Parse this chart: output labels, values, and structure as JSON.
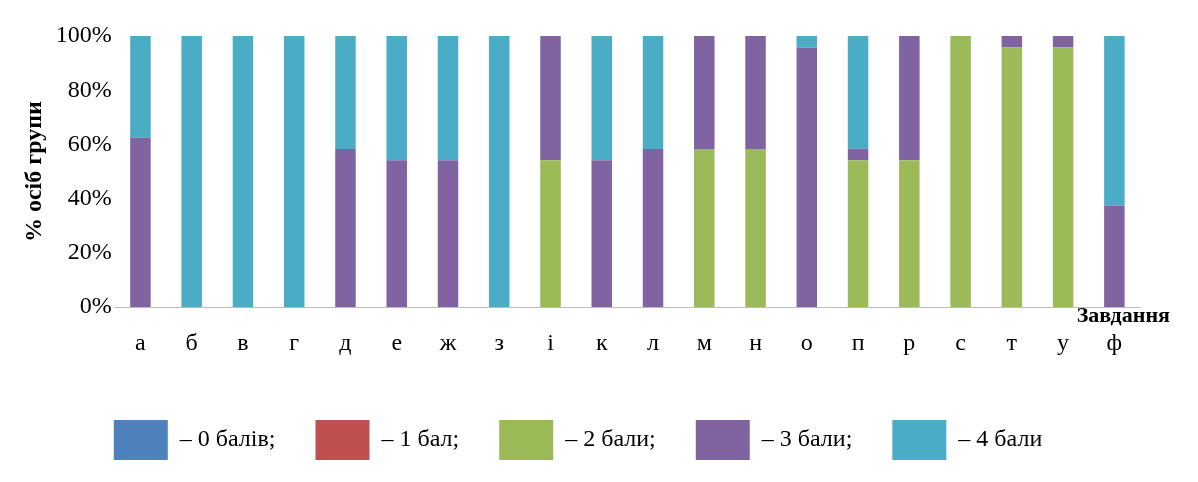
{
  "chart_data": {
    "type": "bar",
    "stacked": true,
    "xlabel": "Завдання",
    "ylabel": "% осіб групи",
    "categories": [
      "а",
      "б",
      "в",
      "г",
      "д",
      "е",
      "ж",
      "з",
      "і",
      "к",
      "л",
      "м",
      "н",
      "о",
      "п",
      "р",
      "с",
      "т",
      "у",
      "ф"
    ],
    "series": [
      {
        "name": "– 0 балів;",
        "color": "#4f81bd",
        "values": [
          0,
          0,
          0,
          0,
          0,
          0,
          0,
          0,
          0,
          0,
          0,
          0,
          0,
          0,
          0,
          0,
          0,
          0,
          0,
          0
        ]
      },
      {
        "name": "– 1 бал;",
        "color": "#c0504d",
        "values": [
          0,
          0,
          0,
          0,
          0,
          0,
          0,
          0,
          0,
          0,
          0,
          0,
          0,
          0,
          0,
          0,
          0,
          0,
          0,
          0
        ]
      },
      {
        "name": "– 2 бали;",
        "color": "#9bbb59",
        "values": [
          0,
          0,
          0,
          0,
          0,
          0,
          0,
          0,
          54.2,
          0,
          0,
          58.3,
          58.3,
          0,
          54.2,
          54.2,
          100,
          95.8,
          95.8,
          0
        ]
      },
      {
        "name": "– 3 бали;",
        "color": "#8064a2",
        "values": [
          62.5,
          0,
          0,
          0,
          58.3,
          54.2,
          54.2,
          0,
          45.8,
          54.2,
          58.3,
          41.7,
          41.7,
          95.8,
          4.2,
          45.8,
          0,
          4.2,
          4.2,
          37.5
        ]
      },
      {
        "name": "– 4 бали",
        "color": "#4bacc6",
        "values": [
          37.5,
          100,
          100,
          100,
          41.7,
          45.8,
          45.8,
          100,
          0,
          45.8,
          41.7,
          0,
          0,
          4.2,
          41.7,
          0,
          0,
          0,
          0,
          62.5
        ]
      }
    ],
    "ylim": [
      0,
      100
    ],
    "yticks": [
      {
        "value": 0,
        "label": "0%"
      },
      {
        "value": 20,
        "label": "20%"
      },
      {
        "value": 40,
        "label": "40%"
      },
      {
        "value": 60,
        "label": "60%"
      },
      {
        "value": 80,
        "label": "80%"
      },
      {
        "value": 100,
        "label": "100%"
      }
    ],
    "grid": false,
    "legend": "bottom"
  }
}
